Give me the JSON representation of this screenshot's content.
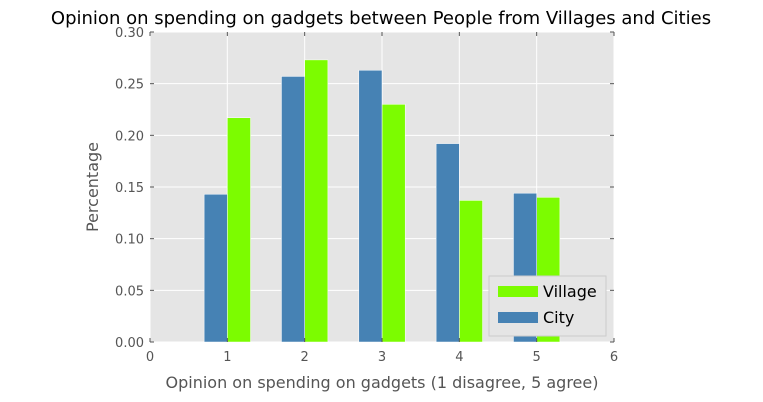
{
  "chart_data": {
    "type": "bar",
    "title": "Opinion on spending on gadgets between People from Villages and Cities",
    "xlabel": "Opinion on spending on gadgets (1 disagree, 5 agree)",
    "ylabel": "Percentage",
    "x": [
      1,
      2,
      3,
      4,
      5
    ],
    "xlim": [
      0,
      6
    ],
    "ylim": [
      0,
      0.3
    ],
    "xticks": [
      "0",
      "1",
      "2",
      "3",
      "4",
      "5",
      "6"
    ],
    "yticks": [
      "0.00",
      "0.05",
      "0.10",
      "0.15",
      "0.20",
      "0.25",
      "0.30"
    ],
    "grid": true,
    "legend_position": "lower-right",
    "series": [
      {
        "name": "Village",
        "color": "#7cfc00",
        "values": [
          0.217,
          0.273,
          0.23,
          0.137,
          0.14
        ]
      },
      {
        "name": "City",
        "color": "#4682b4",
        "values": [
          0.143,
          0.257,
          0.263,
          0.192,
          0.144
        ]
      }
    ],
    "colors": {
      "plot_background": "#e5e5e5",
      "grid": "#ffffff"
    }
  }
}
